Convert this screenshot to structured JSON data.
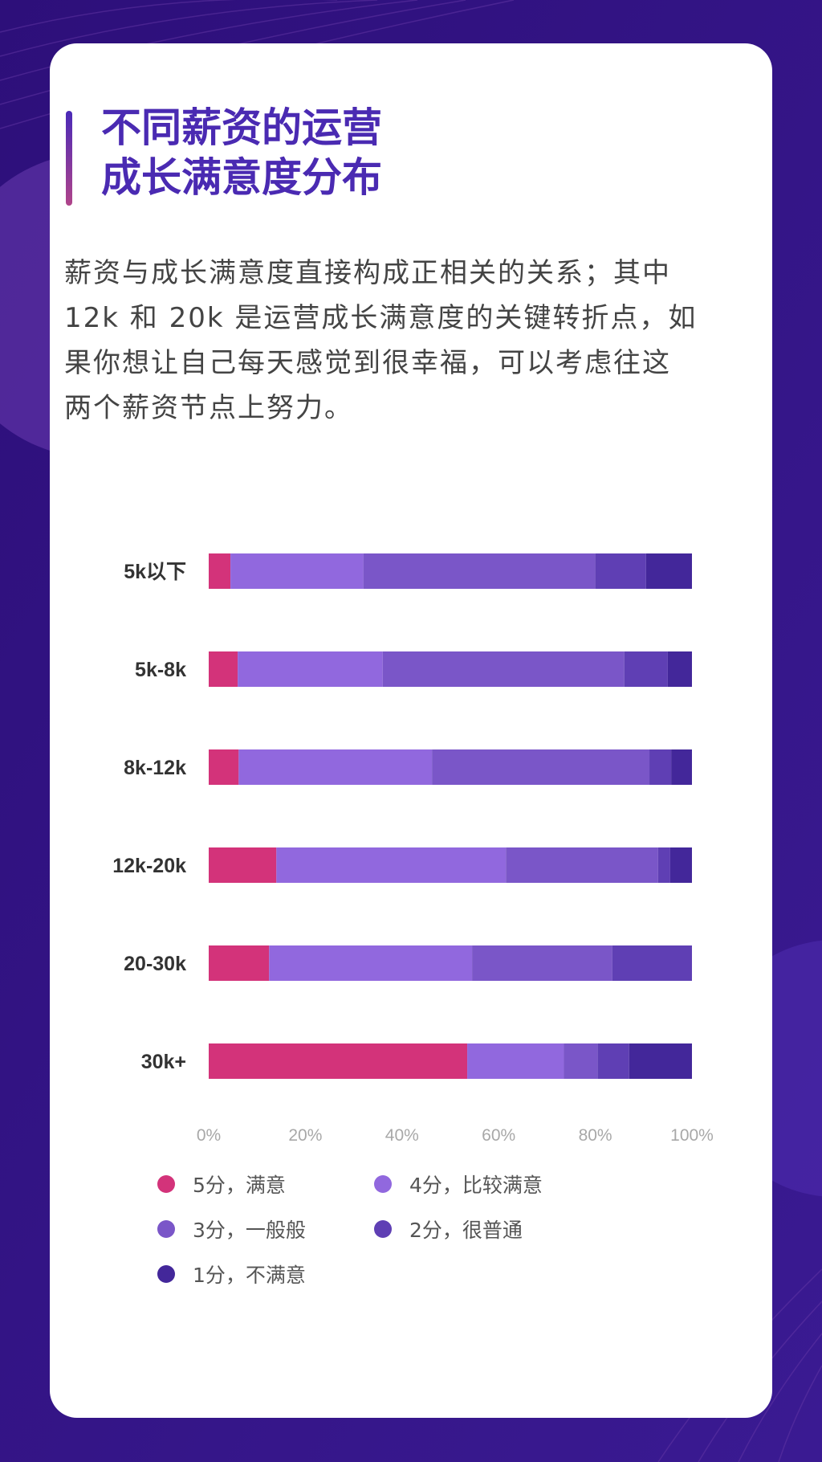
{
  "title": "不同薪资的运营\n成长满意度分布",
  "description": "薪资与成长满意度直接构成正相关的关系；其中 12k 和 20k 是运营成长满意度的关键转折点，如果你想让自己每天感觉到很幸福，可以考虑往这两个薪资节点上努力。",
  "colors": {
    "background": "#2b1080",
    "title": "#4a2ab2"
  },
  "chart_data": {
    "type": "bar",
    "orientation": "horizontal",
    "stacked": true,
    "categories": [
      "5k以下",
      "5k-8k",
      "8k-12k",
      "12k-20k",
      "20-30k",
      "30k+"
    ],
    "xlim": [
      0,
      100
    ],
    "xticks": [
      "0%",
      "20%",
      "40%",
      "60%",
      "80%",
      "100%"
    ],
    "grid": false,
    "legend_position": "bottom",
    "series": [
      {
        "name": "5分，满意",
        "color": "#d3337a",
        "values": [
          4.5,
          6,
          6.2,
          14,
          12.5,
          53.5
        ]
      },
      {
        "name": "4分，比较满意",
        "color": "#9168de",
        "values": [
          27.5,
          30,
          40,
          47.5,
          42,
          20
        ]
      },
      {
        "name": "3分，一般般",
        "color": "#7a56c8",
        "values": [
          48,
          50,
          45,
          31.5,
          29,
          7
        ]
      },
      {
        "name": "2分，很普通",
        "color": "#5f3fb4",
        "values": [
          10.5,
          9,
          4.5,
          2.5,
          16.5,
          6.5
        ]
      },
      {
        "name": "1分，不满意",
        "color": "#43279a",
        "values": [
          9.5,
          5,
          4.3,
          4.5,
          0,
          13
        ]
      }
    ]
  }
}
